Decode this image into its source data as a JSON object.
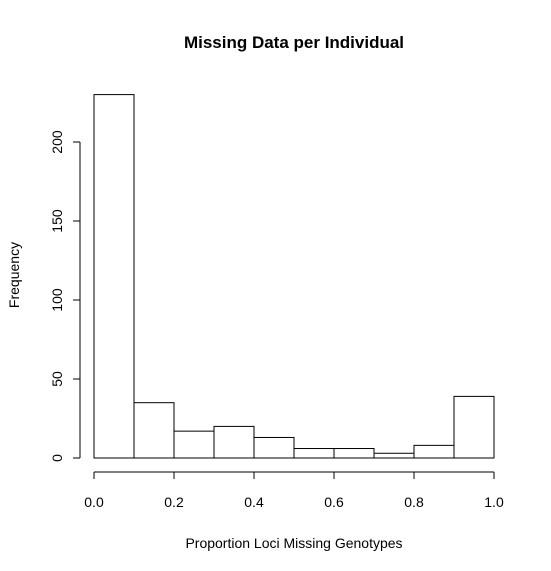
{
  "chart_data": {
    "type": "bar",
    "title": "Missing Data per Individual",
    "xlabel": "Proportion Loci Missing Genotypes",
    "ylabel": "Frequency",
    "bins": [
      {
        "start": 0.0,
        "end": 0.1,
        "count": 230
      },
      {
        "start": 0.1,
        "end": 0.2,
        "count": 35
      },
      {
        "start": 0.2,
        "end": 0.3,
        "count": 17
      },
      {
        "start": 0.3,
        "end": 0.4,
        "count": 20
      },
      {
        "start": 0.4,
        "end": 0.5,
        "count": 13
      },
      {
        "start": 0.5,
        "end": 0.6,
        "count": 6
      },
      {
        "start": 0.6,
        "end": 0.7,
        "count": 6
      },
      {
        "start": 0.7,
        "end": 0.8,
        "count": 3
      },
      {
        "start": 0.8,
        "end": 0.9,
        "count": 8
      },
      {
        "start": 0.9,
        "end": 1.0,
        "count": 39
      }
    ],
    "xlim": [
      0,
      1
    ],
    "ylim": [
      0,
      230
    ],
    "x_ticks": [
      {
        "value": 0.0,
        "label": "0.0"
      },
      {
        "value": 0.2,
        "label": "0.2"
      },
      {
        "value": 0.4,
        "label": "0.4"
      },
      {
        "value": 0.6,
        "label": "0.6"
      },
      {
        "value": 0.8,
        "label": "0.8"
      },
      {
        "value": 1.0,
        "label": "1.0"
      }
    ],
    "y_ticks": [
      {
        "value": 0,
        "label": "0"
      },
      {
        "value": 50,
        "label": "50"
      },
      {
        "value": 100,
        "label": "100"
      },
      {
        "value": 150,
        "label": "150"
      },
      {
        "value": 200,
        "label": "200"
      }
    ],
    "grid": false,
    "bar_fill": "#ffffff",
    "bar_stroke": "#000000"
  }
}
